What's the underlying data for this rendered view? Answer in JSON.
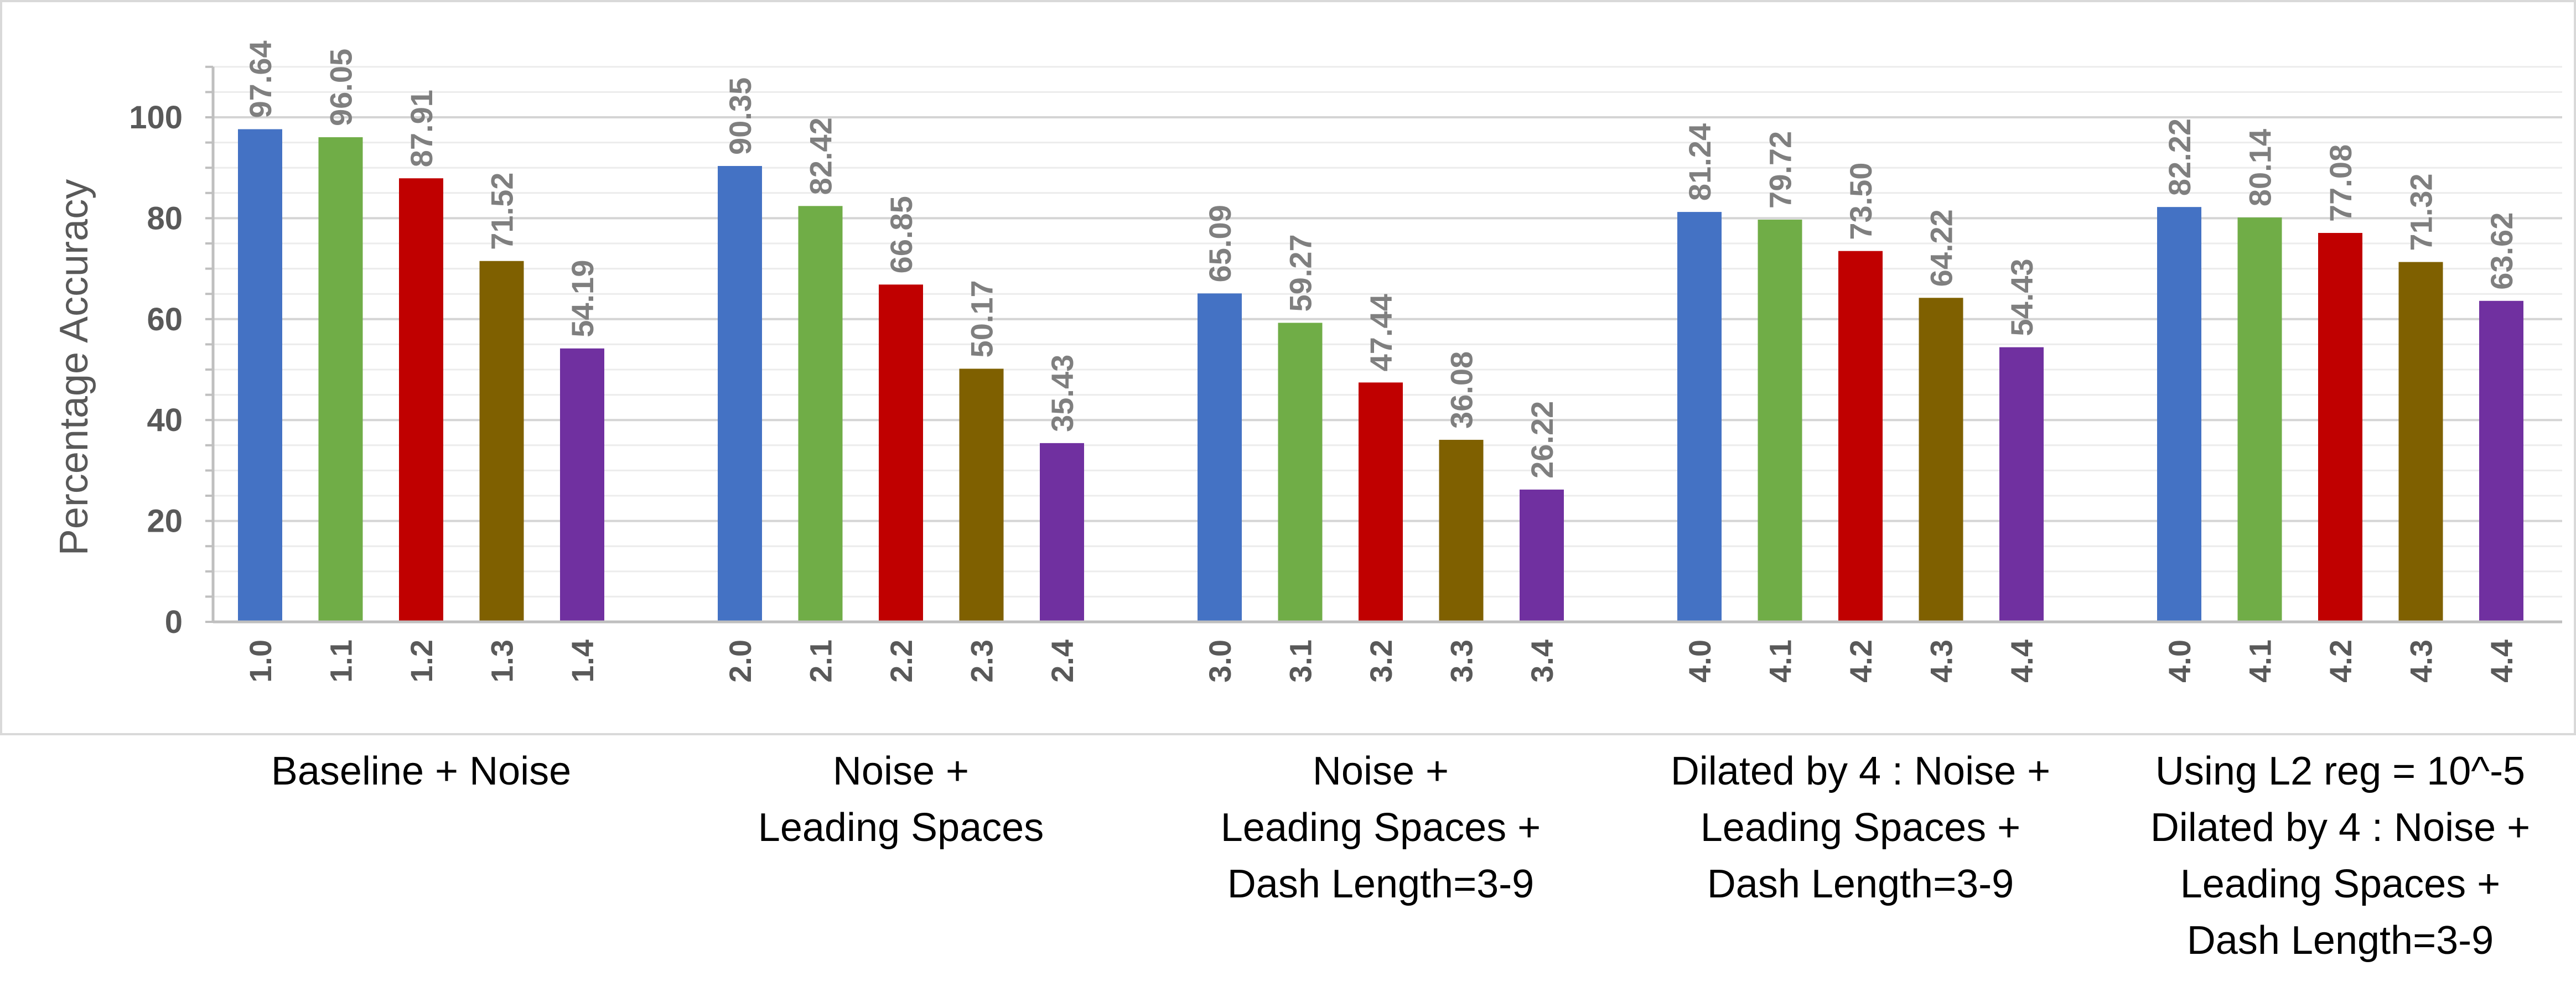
{
  "chart_data": {
    "type": "bar",
    "title": "",
    "xlabel": "",
    "ylabel": "Percentage Accuracy",
    "ylim": [
      0,
      110
    ],
    "yticks": [
      0,
      20,
      40,
      60,
      80,
      100
    ],
    "grid": true,
    "legend": "none",
    "colors": [
      "#4472c4",
      "#70ad47",
      "#c00000",
      "#7f6000",
      "#7030a0"
    ],
    "groups": [
      {
        "label": "Baseline + Noise",
        "categories": [
          "1.0",
          "1.1",
          "1.2",
          "1.3",
          "1.4"
        ],
        "values": [
          97.64,
          96.05,
          87.91,
          71.52,
          54.19
        ],
        "value_labels": [
          "97.64",
          "96.05",
          "87.91",
          "71.52",
          "54.19"
        ]
      },
      {
        "label": "Noise +\nLeading Spaces",
        "categories": [
          "2.0",
          "2.1",
          "2.2",
          "2.3",
          "2.4"
        ],
        "values": [
          90.35,
          82.42,
          66.85,
          50.17,
          35.43
        ],
        "value_labels": [
          "90.35",
          "82.42",
          "66.85",
          "50.17",
          "35.43"
        ]
      },
      {
        "label": "Noise +\nLeading Spaces +\nDash Length=3-9",
        "categories": [
          "3.0",
          "3.1",
          "3.2",
          "3.3",
          "3.4"
        ],
        "values": [
          65.09,
          59.27,
          47.44,
          36.08,
          26.22
        ],
        "value_labels": [
          "65.09",
          "59.27",
          "47.44",
          "36.08",
          "26.22"
        ]
      },
      {
        "label": "Dilated by 4 : Noise +\nLeading Spaces +\nDash Length=3-9",
        "categories": [
          "4.0",
          "4.1",
          "4.2",
          "4.3",
          "4.4"
        ],
        "values": [
          81.24,
          79.72,
          73.5,
          64.22,
          54.43
        ],
        "value_labels": [
          "81.24",
          "79.72",
          "73.50",
          "64.22",
          "54.43"
        ]
      },
      {
        "label": "Using L2 reg = 10^-5\nDilated by 4 : Noise +\nLeading Spaces +\nDash Length=3-9",
        "categories": [
          "4.0",
          "4.1",
          "4.2",
          "4.3",
          "4.4"
        ],
        "values": [
          82.22,
          80.14,
          77.08,
          71.32,
          63.62
        ],
        "value_labels": [
          "82.22",
          "80.14",
          "77.08",
          "71.32",
          "63.62"
        ]
      }
    ]
  }
}
